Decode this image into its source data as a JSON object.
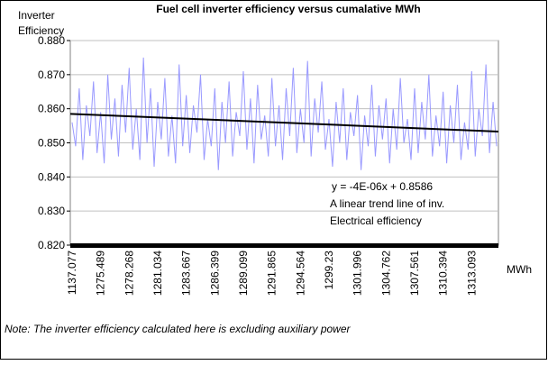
{
  "chart_data": {
    "type": "line",
    "title": "Fuel cell inverter efficiency versus cumalative MWh",
    "y_label": [
      "Inverter",
      "Efficiency"
    ],
    "x_label": "MWh",
    "note": "Note: The inverter efficiency calculated here is excluding auxiliary power",
    "categories": [
      "1137.077",
      null,
      null,
      null,
      null,
      null,
      null,
      null,
      "1275.489",
      null,
      null,
      null,
      null,
      null,
      null,
      null,
      "1278.268",
      null,
      null,
      null,
      null,
      null,
      null,
      null,
      "1281.034",
      null,
      null,
      null,
      null,
      null,
      null,
      null,
      "1283.667",
      null,
      null,
      null,
      null,
      null,
      null,
      null,
      "1286.399",
      null,
      null,
      null,
      null,
      null,
      null,
      null,
      "1289.099",
      null,
      null,
      null,
      null,
      null,
      null,
      null,
      "1291.865",
      null,
      null,
      null,
      null,
      null,
      null,
      null,
      "1294.564",
      null,
      null,
      null,
      null,
      null,
      null,
      null,
      "1299.23",
      null,
      null,
      null,
      null,
      null,
      null,
      null,
      "1301.996",
      null,
      null,
      null,
      null,
      null,
      null,
      null,
      "1304.762",
      null,
      null,
      null,
      null,
      null,
      null,
      null,
      "1307.561",
      null,
      null,
      null,
      null,
      null,
      null,
      null,
      "1310.394",
      null,
      null,
      null,
      null,
      null,
      null,
      null,
      "1313.093",
      null,
      null,
      null,
      null,
      null,
      null,
      null
    ],
    "series": [
      {
        "color": "#9999ff",
        "values": [
          0.856,
          0.849,
          0.866,
          0.845,
          0.861,
          0.852,
          0.868,
          0.847,
          0.859,
          0.844,
          0.87,
          0.851,
          0.863,
          0.846,
          0.867,
          0.853,
          0.872,
          0.848,
          0.86,
          0.845,
          0.875,
          0.85,
          0.866,
          0.843,
          0.862,
          0.851,
          0.869,
          0.846,
          0.858,
          0.844,
          0.873,
          0.849,
          0.864,
          0.847,
          0.861,
          0.853,
          0.87,
          0.845,
          0.857,
          0.849,
          0.866,
          0.842,
          0.862,
          0.85,
          0.868,
          0.846,
          0.859,
          0.852,
          0.871,
          0.848,
          0.863,
          0.844,
          0.867,
          0.851,
          0.858,
          0.846,
          0.869,
          0.849,
          0.861,
          0.845,
          0.866,
          0.852,
          0.872,
          0.847,
          0.86,
          0.85,
          0.874,
          0.846,
          0.863,
          0.853,
          0.868,
          0.848,
          0.857,
          0.843,
          0.862,
          0.85,
          0.866,
          0.845,
          0.859,
          0.852,
          0.864,
          0.842,
          0.858,
          0.849,
          0.867,
          0.846,
          0.861,
          0.851,
          0.863,
          0.844,
          0.86,
          0.848,
          0.869,
          0.85,
          0.857,
          0.845,
          0.866,
          0.847,
          0.862,
          0.851,
          0.87,
          0.846,
          0.858,
          0.849,
          0.865,
          0.844,
          0.861,
          0.85,
          0.867,
          0.845,
          0.856,
          0.848,
          0.871,
          0.846,
          0.86,
          0.852,
          0.873,
          0.847,
          0.862,
          0.849
        ]
      }
    ],
    "trendline": {
      "color": "#000000",
      "start": 0.8585,
      "end": 0.8533
    },
    "annotations": [
      "y = -4E-06x + 0.8586",
      "A linear trend line of inv.",
      "Electrical efficiency"
    ],
    "ylim": [
      0.82,
      0.88
    ],
    "yticks": [
      {
        "value": 0.82,
        "label": "0.820"
      },
      {
        "value": 0.83,
        "label": "0.830"
      },
      {
        "value": 0.84,
        "label": "0.840"
      },
      {
        "value": 0.85,
        "label": "0.850"
      },
      {
        "value": 0.86,
        "label": "0.860"
      },
      {
        "value": 0.87,
        "label": "0.870"
      },
      {
        "value": 0.88,
        "label": "0.880"
      }
    ],
    "grid": true
  }
}
